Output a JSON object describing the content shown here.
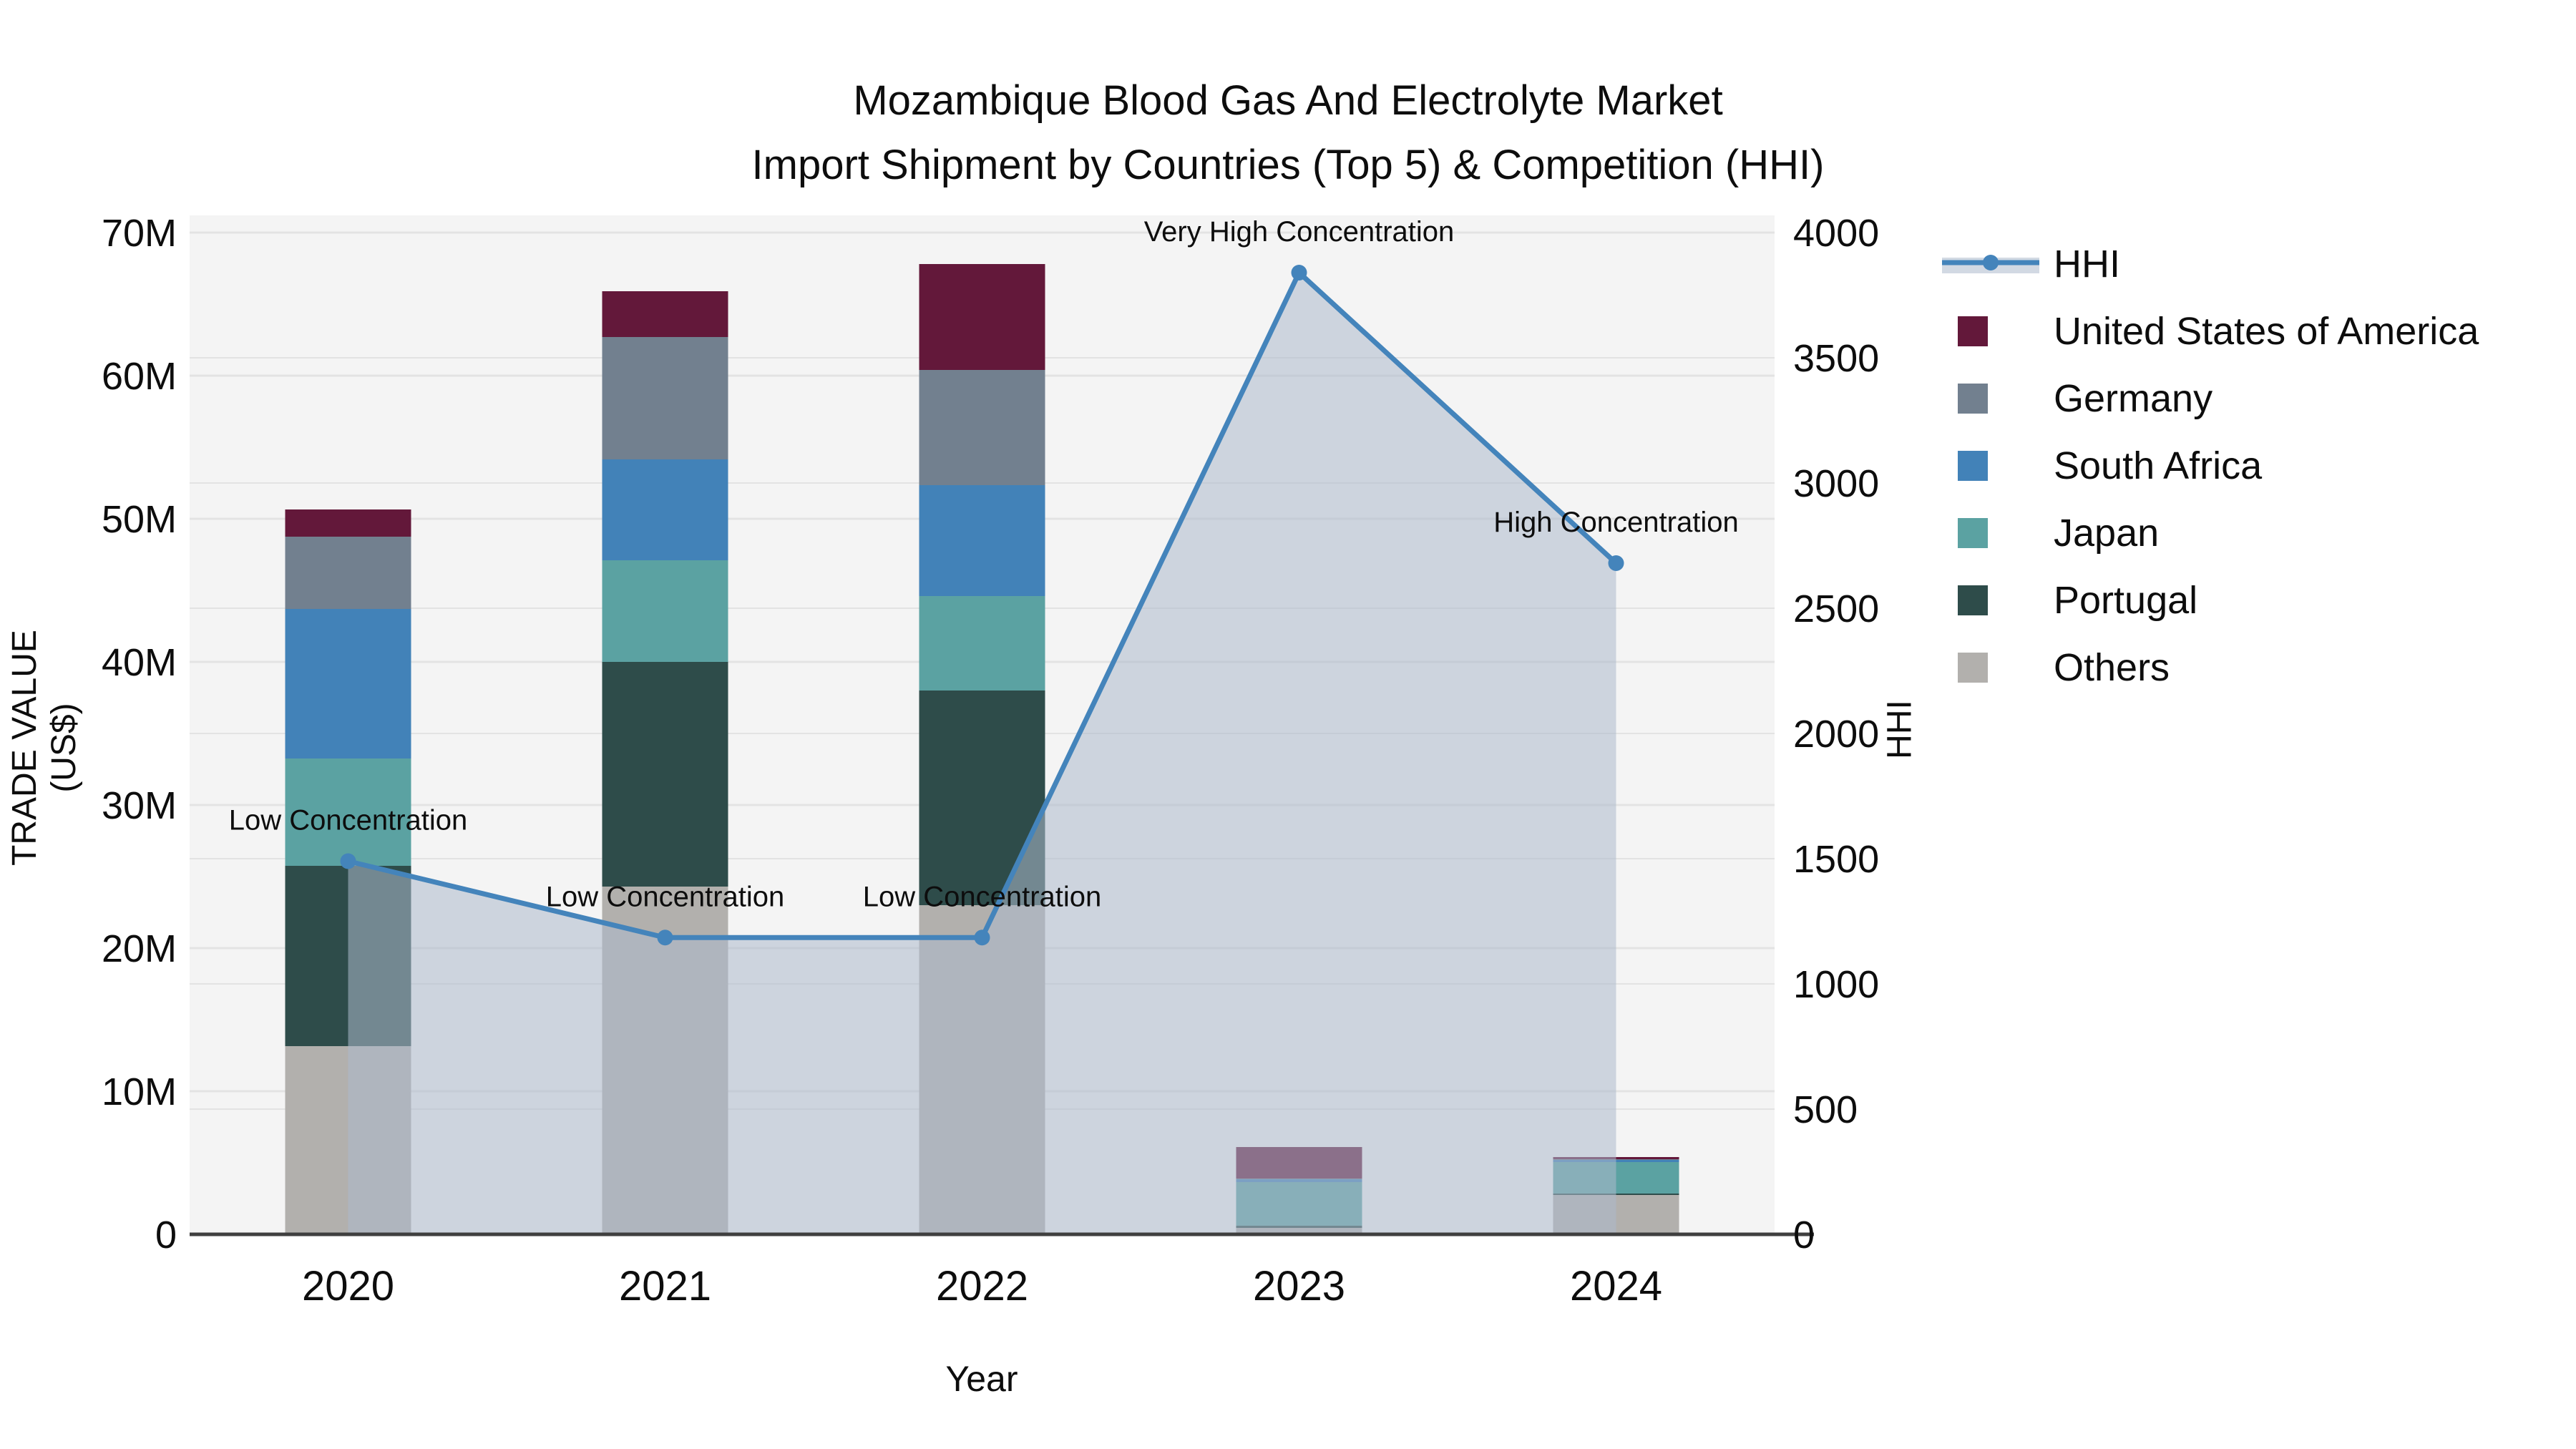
{
  "title": {
    "line1": "Mozambique Blood Gas And Electrolyte Market",
    "line2": "Import Shipment by Countries (Top 5) & Competition (HHI)"
  },
  "chart_data": {
    "type": "bar+line",
    "categories": [
      "2020",
      "2021",
      "2022",
      "2023",
      "2024"
    ],
    "stack_note": "bars stacked bottom-up in reverse of series order (Others at bottom, USA on top), values in millions US$",
    "series": [
      {
        "name": "United States of America",
        "color": "#63183a",
        "values": [
          1.9,
          3.2,
          7.4,
          2.2,
          0.15
        ]
      },
      {
        "name": "Germany",
        "color": "#72808f",
        "values": [
          5.05,
          8.55,
          8.05,
          0.05,
          0.05
        ]
      },
      {
        "name": "South Africa",
        "color": "#4282b8",
        "values": [
          10.45,
          7.05,
          7.75,
          0.2,
          0.15
        ]
      },
      {
        "name": "Japan",
        "color": "#5ba2a2",
        "values": [
          7.5,
          7.1,
          6.6,
          3.05,
          2.2
        ]
      },
      {
        "name": "Portugal",
        "color": "#2e4c4a",
        "values": [
          12.6,
          15.7,
          15.0,
          0.15,
          0.1
        ]
      },
      {
        "name": "Others",
        "color": "#b2b0ad",
        "values": [
          13.15,
          24.3,
          23.0,
          0.45,
          2.75
        ]
      }
    ],
    "line": {
      "name": "HHI",
      "color": "#4484bb",
      "area_fill": "rgba(173,185,204,0.55)",
      "values": [
        1490,
        1185,
        1185,
        3840,
        2680
      ]
    },
    "annotations": [
      "Low Concentration",
      "Low Concentration",
      "Low Concentration",
      "Very High Concentration",
      "High Concentration"
    ],
    "y_left": {
      "title": "TRADE VALUE (US$)",
      "ticks": [
        "0",
        "10M",
        "20M",
        "30M",
        "40M",
        "50M",
        "60M",
        "70M"
      ],
      "max": 70
    },
    "y_right": {
      "title": "HHI",
      "ticks": [
        "0",
        "500",
        "1000",
        "1500",
        "2000",
        "2500",
        "3000",
        "3500",
        "4000"
      ],
      "max": 4000
    },
    "x_title": "Year",
    "legend": [
      "HHI",
      "United States of America",
      "Germany",
      "South Africa",
      "Japan",
      "Portugal",
      "Others"
    ],
    "layout": {
      "plot_bg": "#f4f4f4",
      "grid_color": "#e3e3e3",
      "axis_line_color": "#3f3f3f",
      "grid_on": true,
      "legend_position": "right"
    }
  }
}
